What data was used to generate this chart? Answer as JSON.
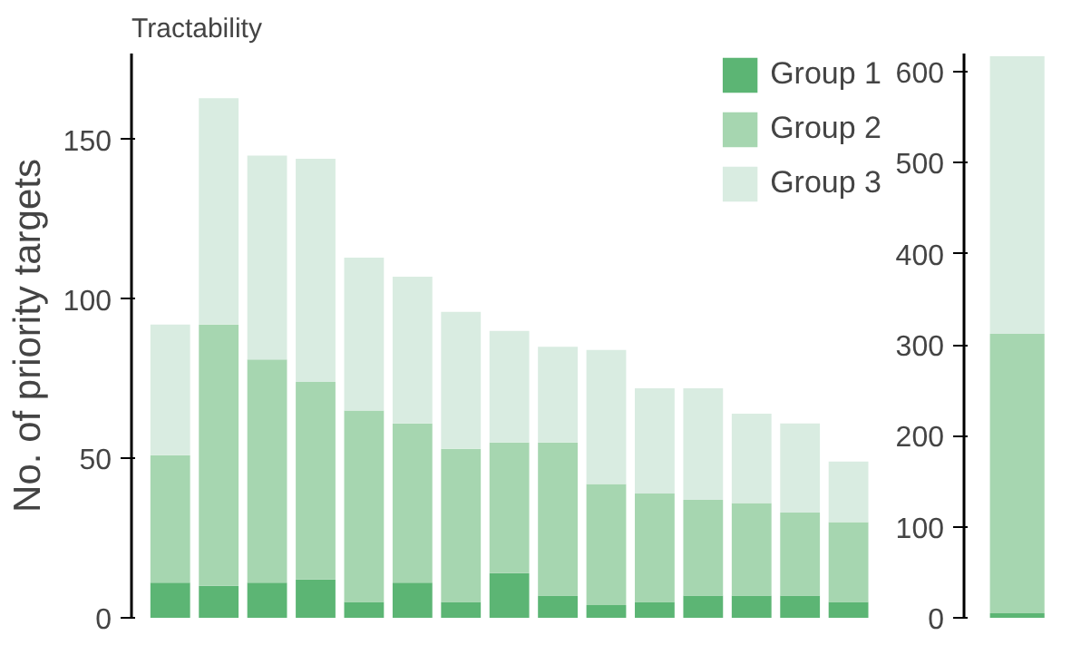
{
  "chart_data": [
    {
      "type": "bar",
      "title": "Tractability",
      "ylabel": "No. of priority targets",
      "stacked": true,
      "legend": "top right",
      "grid": false,
      "categories": [
        null,
        null,
        null,
        null,
        null,
        null,
        null,
        null,
        null,
        null,
        null,
        null,
        null,
        null,
        null
      ],
      "ylim": [
        0,
        177
      ],
      "yticks": [
        0,
        50,
        100,
        150
      ],
      "series": [
        {
          "name": "Group 1",
          "color": "#5cb574",
          "values": [
            11,
            10,
            11,
            12,
            5,
            11,
            5,
            14,
            7,
            4,
            5,
            7,
            7,
            7,
            5
          ]
        },
        {
          "name": "Group 2",
          "color": "#a6d6b0",
          "values": [
            40,
            82,
            70,
            62,
            60,
            50,
            48,
            41,
            48,
            38,
            34,
            30,
            29,
            26,
            25
          ]
        },
        {
          "name": "Group 3",
          "color": "#d9ece1",
          "values": [
            41,
            71,
            64,
            70,
            48,
            46,
            43,
            35,
            30,
            42,
            33,
            35,
            28,
            28,
            19
          ]
        }
      ]
    },
    {
      "type": "bar",
      "stacked": true,
      "grid": false,
      "categories": [
        null
      ],
      "ylim": [
        0,
        620
      ],
      "yticks": [
        0,
        100,
        200,
        300,
        400,
        500,
        600
      ],
      "series": [
        {
          "color": "#5cb574",
          "values": [
            5
          ]
        },
        {
          "color": "#a6d6b0",
          "values": [
            307
          ]
        },
        {
          "color": "#d9ece1",
          "values": [
            305
          ]
        }
      ]
    }
  ]
}
